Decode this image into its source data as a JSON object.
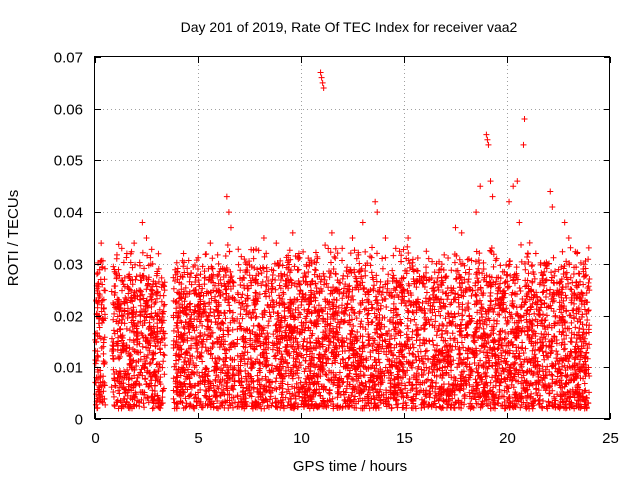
{
  "chart_data": {
    "type": "scatter",
    "title": "Day 201 of 2019, Rate Of TEC Index for receiver vaa2",
    "xlabel": "GPS time / hours",
    "ylabel": "ROTI / TECUs",
    "xlim": [
      0,
      25
    ],
    "ylim": [
      0,
      0.07
    ],
    "xticks": [
      0,
      5,
      10,
      15,
      20,
      25
    ],
    "yticks": [
      0,
      0.01,
      0.02,
      0.03,
      0.04,
      0.05,
      0.06,
      0.07
    ],
    "xtick_labels": [
      "0",
      "5",
      "10",
      "15",
      "20",
      "25"
    ],
    "ytick_labels": [
      "0",
      "0.01",
      "0.02",
      "0.03",
      "0.04",
      "0.05",
      "0.06",
      "0.07"
    ],
    "grid": true,
    "marker": "+",
    "color": "#ff0000",
    "data_coverage_hours": [
      [
        0,
        0.5
      ],
      [
        0.8,
        3.4
      ],
      [
        3.8,
        6.8
      ],
      [
        6.9,
        24.0
      ]
    ],
    "typical_range": [
      0.002,
      0.03
    ],
    "series": [
      {
        "name": "vaa2",
        "points": [
          [
            0.1,
            0.004
          ],
          [
            0.2,
            0.02
          ],
          [
            0.3,
            0.034
          ],
          [
            0.35,
            0.026
          ],
          [
            0.4,
            0.014
          ],
          [
            1.3,
            0.033
          ],
          [
            1.9,
            0.034
          ],
          [
            2.3,
            0.038
          ],
          [
            2.5,
            0.035
          ],
          [
            2.8,
            0.03
          ],
          [
            4.3,
            0.032
          ],
          [
            5.0,
            0.029
          ],
          [
            5.6,
            0.034
          ],
          [
            6.0,
            0.03
          ],
          [
            6.4,
            0.043
          ],
          [
            6.5,
            0.04
          ],
          [
            6.6,
            0.037
          ],
          [
            7.7,
            0.031
          ],
          [
            8.2,
            0.035
          ],
          [
            8.8,
            0.034
          ],
          [
            9.6,
            0.036
          ],
          [
            9.9,
            0.032
          ],
          [
            10.8,
            0.031
          ],
          [
            10.95,
            0.067
          ],
          [
            11.0,
            0.066
          ],
          [
            11.05,
            0.065
          ],
          [
            11.1,
            0.064
          ],
          [
            11.5,
            0.036
          ],
          [
            12.0,
            0.033
          ],
          [
            12.5,
            0.035
          ],
          [
            13.0,
            0.038
          ],
          [
            13.6,
            0.042
          ],
          [
            13.7,
            0.04
          ],
          [
            14.1,
            0.035
          ],
          [
            14.6,
            0.033
          ],
          [
            15.2,
            0.035
          ],
          [
            16.2,
            0.031
          ],
          [
            16.8,
            0.029
          ],
          [
            17.5,
            0.037
          ],
          [
            17.8,
            0.036
          ],
          [
            18.5,
            0.04
          ],
          [
            18.7,
            0.045
          ],
          [
            19.0,
            0.055
          ],
          [
            19.05,
            0.054
          ],
          [
            19.1,
            0.053
          ],
          [
            19.2,
            0.046
          ],
          [
            19.3,
            0.043
          ],
          [
            19.5,
            0.031
          ],
          [
            20.1,
            0.042
          ],
          [
            20.3,
            0.045
          ],
          [
            20.5,
            0.046
          ],
          [
            20.6,
            0.038
          ],
          [
            20.8,
            0.053
          ],
          [
            20.85,
            0.058
          ],
          [
            21.4,
            0.032
          ],
          [
            22.1,
            0.044
          ],
          [
            22.2,
            0.041
          ],
          [
            22.8,
            0.038
          ],
          [
            23.0,
            0.035
          ],
          [
            23.4,
            0.032
          ],
          [
            23.7,
            0.029
          ],
          [
            0.05,
            0.007
          ],
          [
            0.15,
            0.012
          ],
          [
            2.0,
            0.011
          ],
          [
            5.2,
            0.009
          ],
          [
            9.1,
            0.012
          ],
          [
            13.4,
            0.01
          ],
          [
            16.5,
            0.003
          ],
          [
            18.0,
            0.008
          ],
          [
            21.9,
            0.006
          ],
          [
            23.2,
            0.005
          ]
        ]
      }
    ]
  }
}
